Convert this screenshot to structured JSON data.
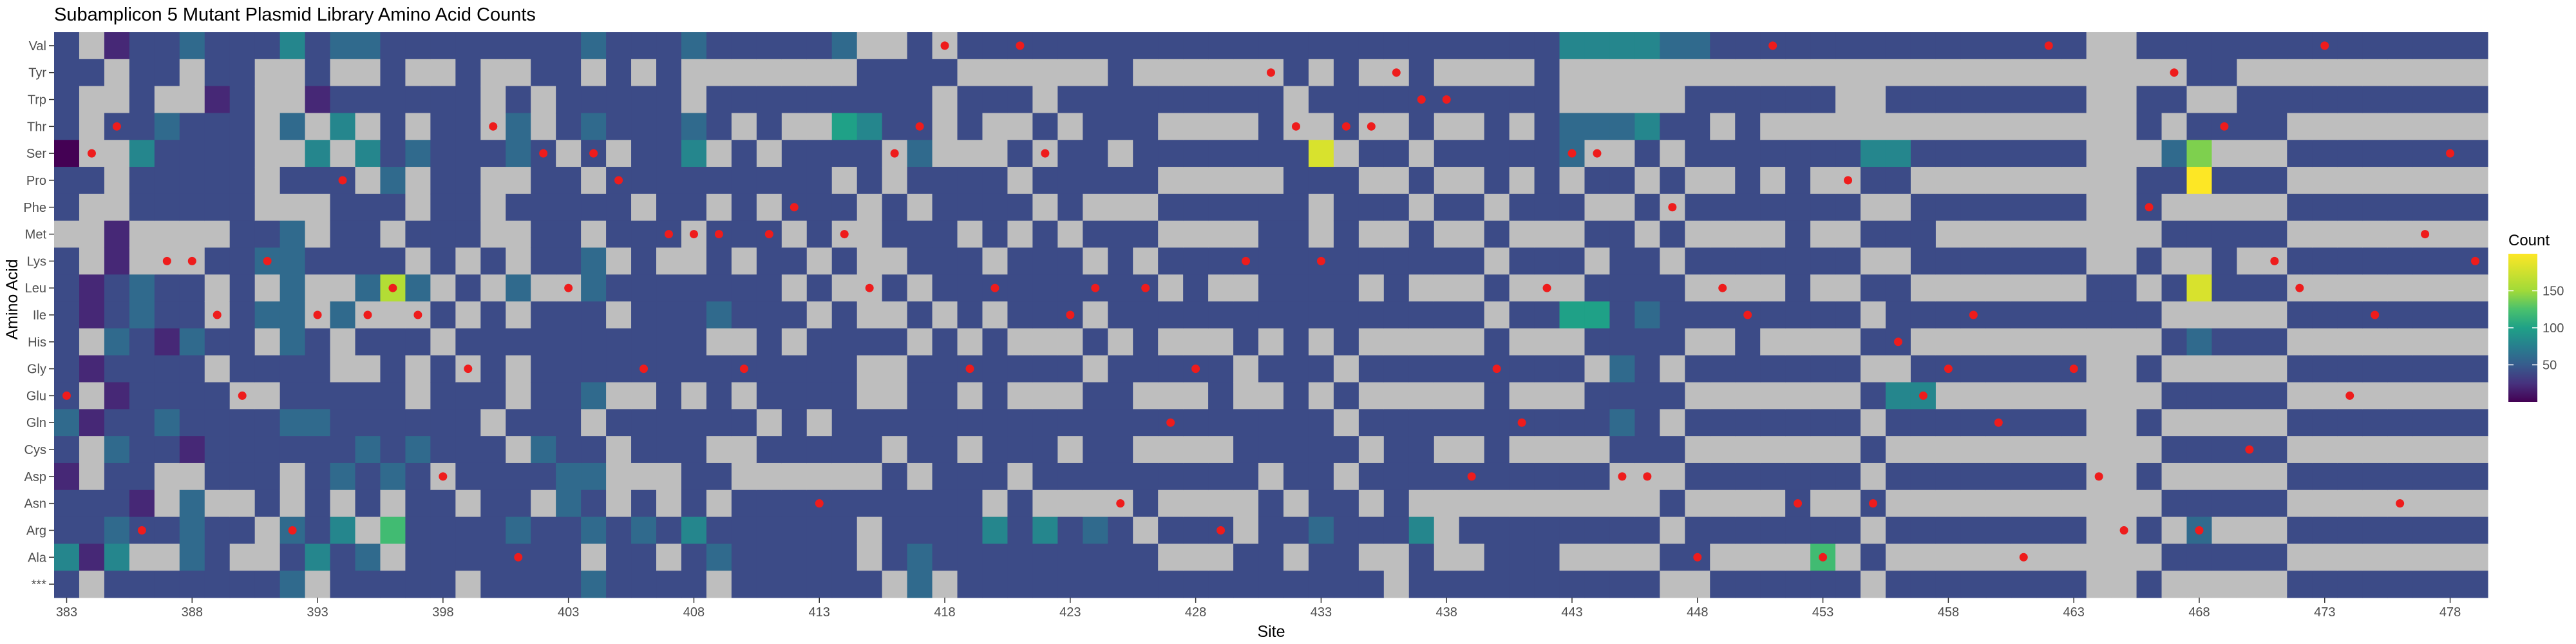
{
  "chart_data": {
    "type": "heatmap",
    "title": "Subamplicon 5 Mutant Plasmid Library Amino Acid Counts",
    "xlabel": "Site",
    "ylabel": "Amino Acid",
    "x_range": [
      383,
      479
    ],
    "x_ticks": [
      "383",
      "388",
      "393",
      "398",
      "403",
      "408",
      "413",
      "418",
      "423",
      "428",
      "433",
      "438",
      "443",
      "448",
      "453",
      "458",
      "463",
      "468",
      "473",
      "478"
    ],
    "amino_acids": [
      "Val",
      "Tyr",
      "Trp",
      "Thr",
      "Ser",
      "Pro",
      "Phe",
      "Met",
      "Lys",
      "Leu",
      "Ile",
      "His",
      "Gly",
      "Glu",
      "Gln",
      "Cys",
      "Asp",
      "Asn",
      "Arg",
      "Ala",
      "***"
    ],
    "legend": {
      "title": "Count",
      "ticks": [
        50,
        100,
        150
      ],
      "range": [
        0,
        200
      ],
      "position": "right",
      "palette": "viridis"
    },
    "missing_color": "#bebebe",
    "wildtype_marker_color": "#ee1c1c",
    "wildtype": {
      "383": "Glu",
      "384": "Ser",
      "385": "Thr",
      "386": "Arg",
      "387": "Lys",
      "388": "Lys",
      "389": "Ile",
      "390": "Glu",
      "391": "Lys",
      "392": "Arg",
      "393": "Ile",
      "394": "Pro",
      "395": "Ile",
      "396": "Leu",
      "397": "Ile",
      "398": "Asp",
      "399": "Gly",
      "400": "Thr",
      "401": "Ala",
      "402": "Ser",
      "403": "Leu",
      "404": "Ser",
      "405": "Pro",
      "406": "Gly",
      "407": "Met",
      "408": "Met",
      "409": "Met",
      "410": "Gly",
      "411": "Met",
      "412": "Phe",
      "413": "Asn",
      "414": "Met",
      "415": "Leu",
      "416": "Ser",
      "417": "Thr",
      "418": "Val",
      "419": "Gly",
      "420": "Leu",
      "421": "Val",
      "422": "Ser",
      "423": "Ile",
      "424": "Leu",
      "425": "Asn",
      "426": "Leu",
      "427": "Gln",
      "428": "Gly",
      "429": "Arg",
      "430": "Lys",
      "431": "Tyr",
      "432": "Thr",
      "433": "Lys",
      "434": "Thr",
      "435": "Thr",
      "436": "Tyr",
      "437": "Trp",
      "438": "Trp",
      "439": "Asp",
      "440": "Gly",
      "441": "Gln",
      "442": "Leu",
      "443": "Ser",
      "444": "Ser",
      "445": "Asp",
      "446": "Asp",
      "447": "Phe",
      "448": "Ala",
      "449": "Leu",
      "450": "Ile",
      "451": "Val",
      "452": "Asn",
      "453": "Ala",
      "454": "Pro",
      "455": "Asn",
      "456": "His",
      "457": "Glu",
      "458": "Gly",
      "459": "Ile",
      "460": "Gln",
      "461": "Ala",
      "462": "Val",
      "463": "Gly",
      "464": "Asp",
      "465": "Arg",
      "466": "Phe",
      "467": "Tyr",
      "468": "Arg",
      "469": "Thr",
      "470": "Cys",
      "471": "Lys",
      "472": "Leu",
      "473": "Val",
      "474": "Glu",
      "475": "Ile",
      "476": "Asn",
      "477": "Met",
      "478": "Ser",
      "479": "Lys"
    },
    "counts_encoding": "Per site (383 to 479), one character per amino acid in the order Val,Tyr,Trp,Thr,Ser,Pro,Phe,Met,Lys,Leu,Ile,His,Gly,Glu,Gln,Cys,Asp,Asn,Arg,Ala,***. '.' = no data (grey); digit d = count of about 20*d; 'A' = about 200.",
    "counts": {
      "383": "2222022.2222223212242",
      "384": ".2...2...11.1.1..221.",
      "385": "1..2...11223212322342",
      "386": "2222422..3322222212.2",
      "387": "22.3222..2212232..2.2",
      "388": "3..2222..2232221.3332",
      "389": "2212222.2..2.2222.222",
      "390": "2222222222222.222.2.2",
      "391": "2......23.3.2.2222..2",
      "392": "4..3.2.333332232..323",
      "393": "221.42..2..222322224.",
      "394": "3.24.2222.3..2223.422",
      "395": "3.2.4.2223.2.22322.32",
      "396": "2222232.28.222223.6.2",
      "397": "2.2.3..2.3.2..2322222",
      "398": "2.2222222.2.2222.2222",
      "399": "22222222.2.2.2222.22.",
      "400": "2...2...2.2222.222222",
      "401": "2.233.2..3.2..2.22322",
      "402": "22..22222.2222232.222",
      "403": "2222.2222.22222233222",
      "404": "3.232.2.332223.2323.3",
      "405": "2222.222.2.22.2...222",
      "406": "2.2222.222222.22.2322",
      "407": "22222222.2222222..2.2",
      "408": "3..3422..2222.2222422",
      "409": "2.22.2.2223.222.2.23.",
      "410": "2.2.2222.22.2.2..2222",
      "411": "2.22.2.2222222.2.2222",
      "412": "2.2.222.2.2.2222.2222",
      "413": "2.2.2222.2.222.2.2222",
      "414": "3.252.2.2.222222.2222",
      "415": ".22422.....2..22.2..2",
      "416": ".222..22.2.2..2.2222.",
      "417": "222232.22.2.2222.2233",
      "418": ".2...22222.222222222.",
      "419": "2.22.22.222.2.2.22222",
      "420": "2.2..222.2.222222.422",
      "421": "2.2.2.2.222.2.22.2222",
      "422": "2..2.2.2222.2.222.422",
      "423": "2.2.222.222.2.2.2.222",
      "424": "2.2222.2.2.2.2222.322",
      "425": "2222.2.2222.22222.222",
      "426": "2.2222.2.2222.2.22.22",
      "427": "2.2.2.2.2.2.2.2.2.2.2",
      "428": "2.2.2.2.222.2.2.2.2.2",
      "429": "2.2.2.2.2.2.222.2.2.2",
      "430": "2.2.2.2.2.22..222..22",
      "431": "2.222.22222.2.22.2222",
      "432": "22..2222222222222.2.2",
      "433": "2.2.92..222.2.2222322",
      "434": "2222.2222222.2.2.2222",
      "435": "2.2.2.2.2.2.2.2.2.2.2",
      "436": "2.2.2.2.222.2.22222..",
      "437": "2222.2.22.2.2.222.422",
      "438": "2.2.2.2.2.2.2.2.2...2",
      "439": "2.2.2.2.2.2.2.2.2.2.2",
      "440": "2.2222.2.2.222222.222",
      "441": "2.2.2.2.2.2.2.2.2.222",
      "442": "2222222.2.2.2.2.2.222",
      "443": "4..33.2.2.5.2.2.2.2.2",
      "444": "4..3.2.2.252.22.2.2.2",
      "445": "4..3.2.222223232..2.2",
      "446": "4..42.2.22322222..2.2",
      "447": "3..2.2.2.222.2.2.2.2.",
      "448": "3.222.2.2.2.2.2.2.22.",
      "449": "2.2.2.2.2.2.2.2.2.2.2",
      "450": "2.22222.2.222.2.2.2.2",
      "451": "2.2.2.2.2.2.2.2.2.2.2",
      "452": "2.2.2222222.2.2.222.2",
      "453": "2.2.2.2.2.2.2.2.2.262",
      "454": "2...2.2.2.2.2.2.2.2.2",
      "455": "2...42.2.2.2.2.2.2.2.",
      "456": "2.2.42.2.222.42.2.2.2",
      "457": "2.2.2.222.2.242.2.2.2",
      "458": "2.2.2.2.2.2.2.2.2.2.2",
      "459": "2.2.2.2.2.2.2.2.2.2.2",
      "460": "2.2.2.2.2.2.2.2.2.2.2",
      "461": "2.2.2.2.2.2.2.2.2.2.2",
      "462": "2.2.2.2.2.2.2.2.2.2.2",
      "463": "2.2.2.2.2.2.2.2.2.2.2",
      "464": ".........22..........",
      "465": ".........22..........",
      "466": "2.22.22.2.2.2.2.2.2.2",
      "467": "2.2.32.2.2.2.2.2.2.2.",
      "468": "22.27A.2.9.3.2.2.232.",
      "469": "22.2.2.222.2.2.2.2.2.",
      "470": "2.22.2.2.2.2.2.2.2.2.",
      "471": "2.22.2.2.2.2.2.2.2.2.",
      "472": "2.2.2.2.2.2.2.2.2.2.2",
      "473": "2.2.2.2.2.2.2.2.2.2.2",
      "474": "2.2.2.2.2.2.2.2.2.2.2",
      "475": "2.2.2.2.2.2.2.2.2.2.2",
      "476": "2.2.2.2.2.2.2.2.2.2.2",
      "477": "2.2.2.2.2.2.2.2.2.2.2",
      "478": "2.2.2.2.2.2.2.2.2.2.2",
      "479": "2.2.2.2.2.2.2.2.2.2.2"
    }
  }
}
